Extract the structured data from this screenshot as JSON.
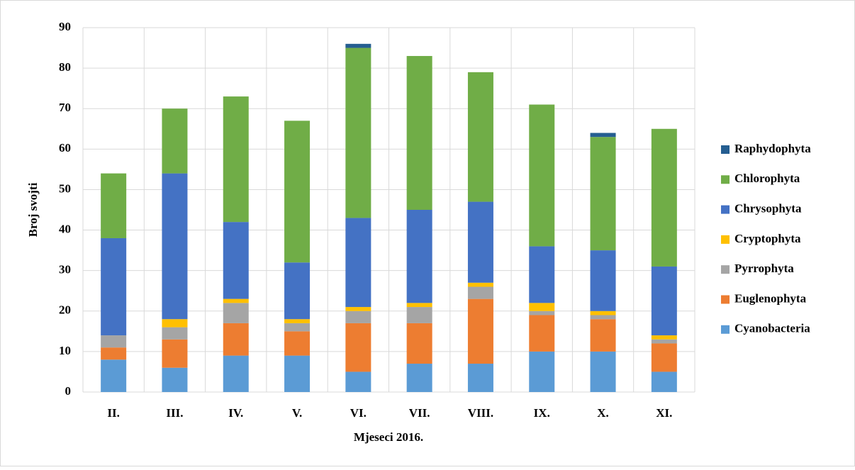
{
  "chart_data": {
    "type": "stacked_bar",
    "x_label": "Mjeseci 2016.",
    "y_label": "Broj svojti",
    "categories": [
      "II.",
      "III.",
      "IV.",
      "V.",
      "VI.",
      "VII.",
      "VIII.",
      "IX.",
      "X.",
      "XI."
    ],
    "series": [
      {
        "name": "Cyanobacteria",
        "color": "#5b9bd5",
        "values": [
          8,
          6,
          9,
          9,
          5,
          7,
          7,
          10,
          10,
          5
        ]
      },
      {
        "name": "Euglenophyta",
        "color": "#ed7d31",
        "values": [
          3,
          7,
          8,
          6,
          12,
          10,
          16,
          9,
          8,
          7
        ]
      },
      {
        "name": "Pyrrophyta",
        "color": "#a5a5a5",
        "values": [
          3,
          3,
          5,
          2,
          3,
          4,
          3,
          1,
          1,
          1
        ]
      },
      {
        "name": "Cryptophyta",
        "color": "#ffc000",
        "values": [
          0,
          2,
          1,
          1,
          1,
          1,
          1,
          2,
          1,
          1
        ]
      },
      {
        "name": "Chrysophyta",
        "color": "#4472c4",
        "values": [
          24,
          36,
          19,
          14,
          22,
          23,
          20,
          14,
          15,
          17
        ]
      },
      {
        "name": "Chlorophyta",
        "color": "#70ad47",
        "values": [
          16,
          16,
          31,
          35,
          42,
          38,
          32,
          35,
          28,
          34
        ]
      },
      {
        "name": "Raphydophyta",
        "color": "#255e91",
        "values": [
          0,
          0,
          0,
          0,
          1,
          0,
          0,
          0,
          1,
          0
        ]
      }
    ],
    "ylim": [
      0,
      90
    ],
    "yticks": [
      0,
      10,
      20,
      30,
      40,
      50,
      60,
      70,
      80,
      90
    ],
    "grid": true,
    "legend": "right"
  }
}
